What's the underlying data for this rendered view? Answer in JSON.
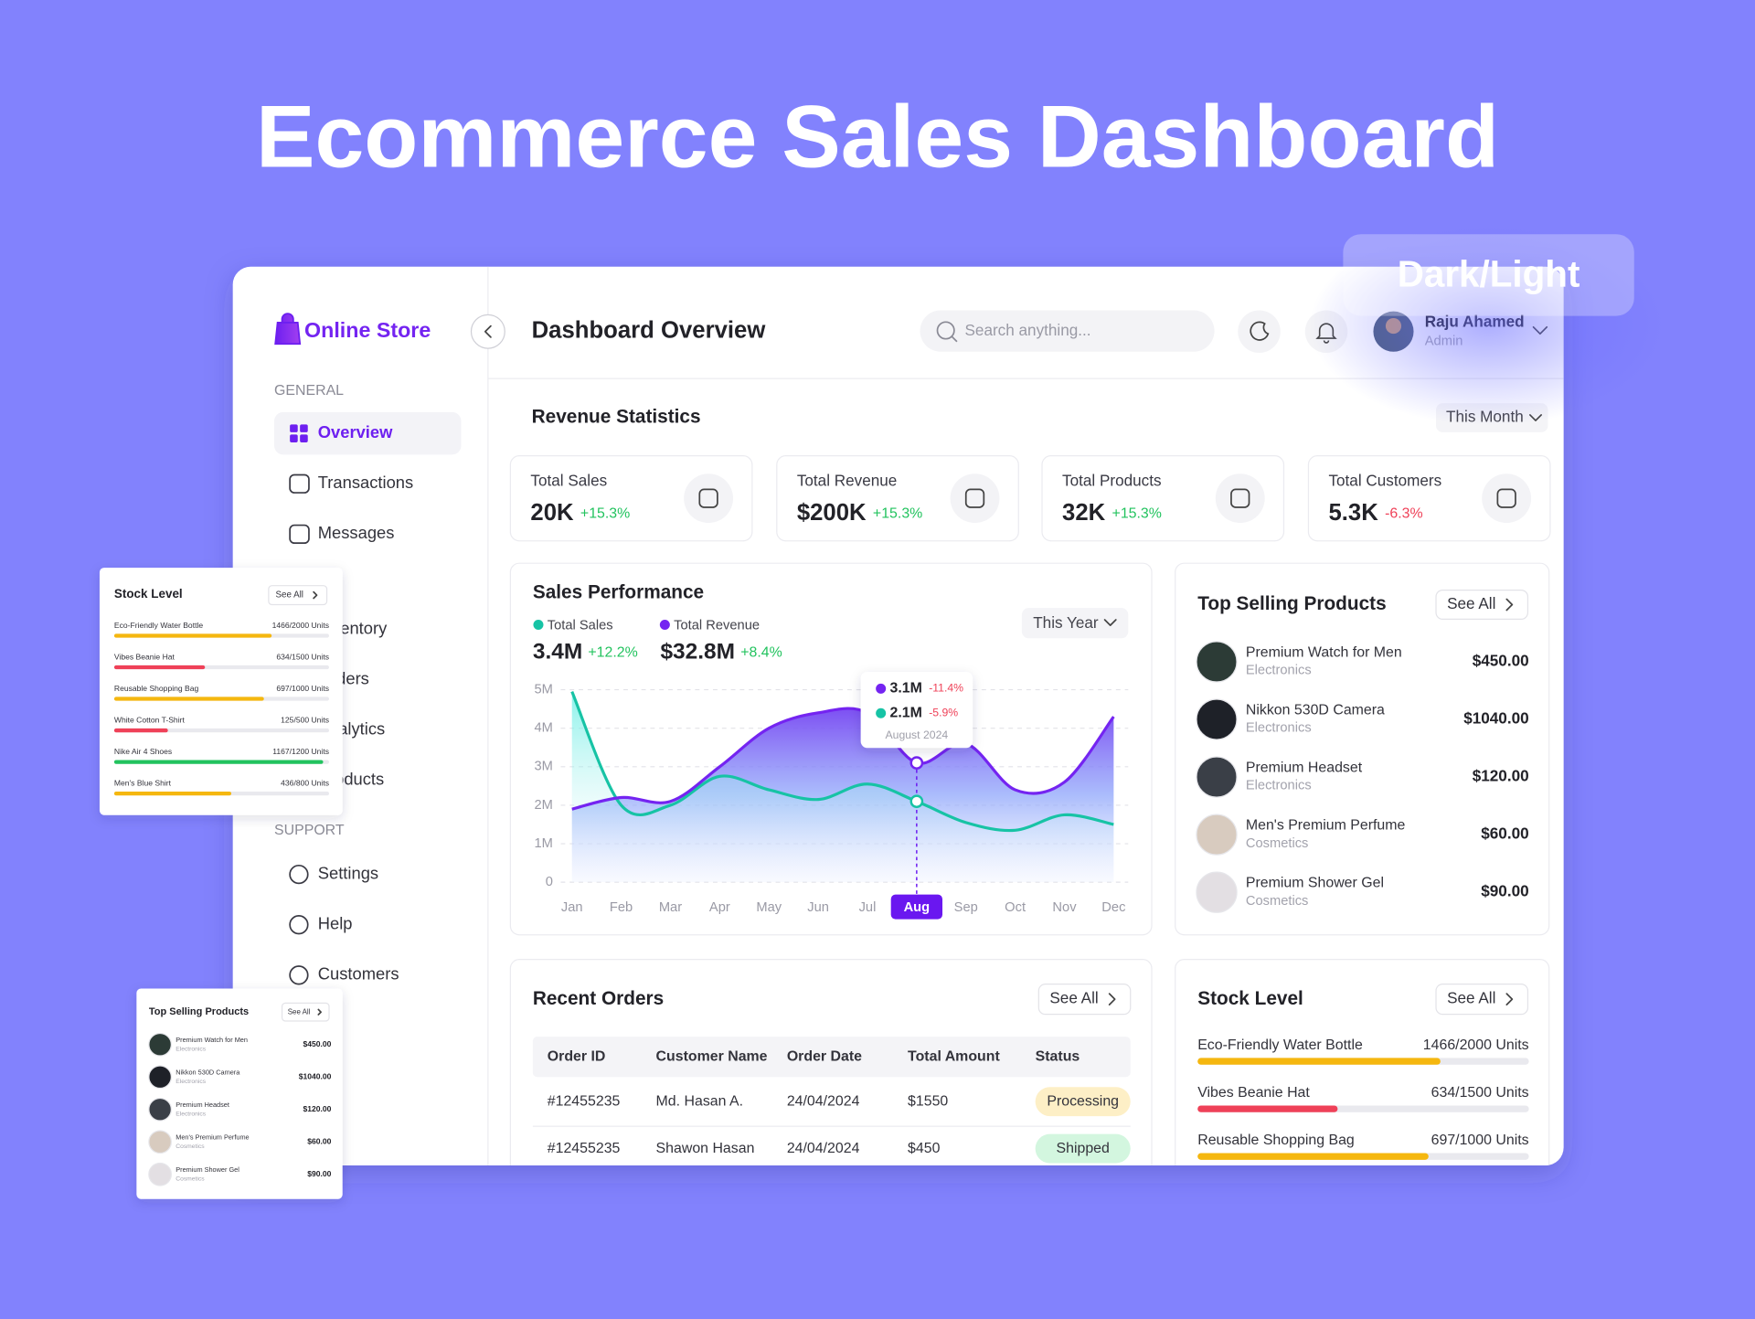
{
  "header": {
    "title": "Ecommerce Sales Dashboard",
    "badge": "Dark/Light"
  },
  "sidebar": {
    "brand": "Online Store",
    "general": {
      "title": "GENERAL",
      "items": [
        "Overview",
        "Transactions",
        "Messages",
        "Inventory",
        "Orders",
        "Analytics",
        "Products"
      ]
    },
    "support": {
      "title": "SUPPORT",
      "items": [
        "Settings",
        "Help",
        "Customers"
      ]
    }
  },
  "topbar": {
    "title": "Dashboard Overview",
    "search_placeholder": "Search anything...",
    "user": {
      "name": "Raju Ahamed",
      "role": "Admin"
    }
  },
  "revenue_statistics": {
    "title": "Revenue Statistics",
    "filter": "This Month",
    "cards": [
      {
        "label": "Total Sales",
        "value": "20K",
        "change": "+15.3%"
      },
      {
        "label": "Total Revenue",
        "value": "$200K",
        "change": "+15.3%"
      },
      {
        "label": "Total Products",
        "value": "32K",
        "change": "+15.3%"
      },
      {
        "label": "Total Customers",
        "value": "5.3K",
        "change": "-6.3%"
      }
    ]
  },
  "chart_data": {
    "type": "area",
    "title": "Sales Performance",
    "filter": "This Year",
    "categories": [
      "Jan",
      "Feb",
      "Mar",
      "Apr",
      "May",
      "Jun",
      "Jul",
      "Aug",
      "Sep",
      "Oct",
      "Nov",
      "Dec"
    ],
    "series": [
      {
        "name": "Total Sales",
        "color": "#17c3a5",
        "total": "3.4M",
        "change": "+12.2%",
        "values": [
          4.95,
          2.0,
          2.0,
          2.75,
          2.4,
          2.15,
          2.55,
          2.1,
          1.55,
          1.35,
          1.75,
          1.5
        ]
      },
      {
        "name": "Total Revenue",
        "color": "#7424f1",
        "total": "$32.8M",
        "change": "+8.4%",
        "values": [
          1.9,
          2.2,
          2.1,
          3.0,
          4.0,
          4.4,
          4.4,
          3.1,
          3.6,
          2.4,
          2.6,
          4.3
        ]
      }
    ],
    "ylim": [
      0,
      5
    ],
    "yticks": [
      0,
      {
        "value": 1,
        "label": "1M"
      },
      {
        "value": 2,
        "label": "2M"
      },
      {
        "value": 3,
        "label": "3M"
      },
      {
        "value": 4,
        "label": "4M"
      },
      {
        "value": 5,
        "label": "5M"
      }
    ],
    "grid": true,
    "highlight": "Aug",
    "tooltip": {
      "items": [
        {
          "color": "#7424f1",
          "value": "3.1M",
          "change": "-11.4%"
        },
        {
          "color": "#17c3a5",
          "value": "2.1M",
          "change": "-5.9%"
        }
      ],
      "label": "August 2024"
    }
  },
  "top_selling_products": {
    "title": "Top Selling Products",
    "see_all": "See All",
    "items": [
      {
        "name": "Premium Watch for Men",
        "category": "Electronics",
        "price": "$450.00"
      },
      {
        "name": "Nikkon 530D Camera",
        "category": "Electronics",
        "price": "$1040.00"
      },
      {
        "name": "Premium Headset",
        "category": "Electronics",
        "price": "$120.00"
      },
      {
        "name": "Men's Premium Perfume",
        "category": "Cosmetics",
        "price": "$60.00"
      },
      {
        "name": "Premium Shower Gel",
        "category": "Cosmetics",
        "price": "$90.00"
      }
    ]
  },
  "recent_orders": {
    "title": "Recent Orders",
    "see_all": "See All",
    "columns": [
      "Order ID",
      "Customer Name",
      "Order Date",
      "Total Amount",
      "Status"
    ],
    "rows": [
      [
        "#12455235",
        "Md. Hasan A.",
        "24/04/2024",
        "$1550",
        "Processing"
      ],
      [
        "#12455235",
        "Shawon Hasan",
        "24/04/2024",
        "$450",
        "Shipped"
      ]
    ],
    "status_colors": [
      "#fdefc6",
      "#d3f6df"
    ]
  },
  "stock_level": {
    "title": "Stock Level",
    "see_all": "See All",
    "items": [
      {
        "name": "Eco-Friendly Water Bottle",
        "units": "1466/2000 Units",
        "stock": 1466,
        "capacity": 2000,
        "color": "#f5b70f"
      },
      {
        "name": "Vibes Beanie Hat",
        "units": "634/1500 Units",
        "stock": 634,
        "capacity": 1500,
        "color": "#ef4158"
      },
      {
        "name": "Reusable Shopping Bag",
        "units": "697/1000 Units",
        "stock": 697,
        "capacity": 1000,
        "color": "#f5b70f"
      },
      {
        "name": "White Cotton T-Shirt",
        "units": "125/500 Units",
        "stock": 125,
        "capacity": 500,
        "color": "#ef4158"
      },
      {
        "name": "Nike Air 4 Shoes",
        "units": "1167/1200 Units",
        "stock": 1167,
        "capacity": 1200,
        "color": "#22c35e"
      },
      {
        "name": "Men's Blue Shirt",
        "units": "436/800 Units",
        "stock": 436,
        "capacity": 800,
        "color": "#f5b70f"
      }
    ]
  }
}
